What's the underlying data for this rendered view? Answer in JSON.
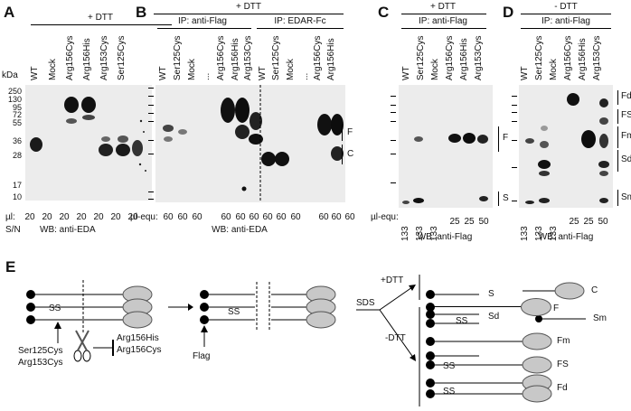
{
  "panels": {
    "A": {
      "letter": "A",
      "condition": "+ DTT",
      "kda": "kDa",
      "lanes": [
        "WT",
        "Mock",
        "Arg156Cys",
        "Arg156His",
        "Arg153Cys",
        "Ser125Cys"
      ],
      "markers": [
        "250",
        "130",
        "95",
        "72",
        "55",
        "36",
        "28",
        "17",
        "10"
      ],
      "side_labels": [
        "F",
        "C"
      ],
      "amount_prefix": "µl:",
      "amounts": [
        "20",
        "20",
        "20",
        "20",
        "20",
        "20",
        "20"
      ],
      "footer_left": "S/N",
      "footer_right": "WB: anti-EDA"
    },
    "B": {
      "letter": "B",
      "condition": "+ DTT",
      "ip_left": "IP: anti-Flag",
      "ip_right": "IP: EDAR-Fc",
      "lanes_left": [
        "WT",
        "Ser125Cys",
        "Mock",
        "...",
        "Arg156Cys",
        "Arg156His",
        "Arg153Cys"
      ],
      "lanes_right": [
        "WT",
        "Ser125Cys",
        "Mock",
        "...",
        "Arg156Cys",
        "Arg156His"
      ],
      "side_labels": [
        "F",
        "C"
      ],
      "amount_prefix": "µl-equ:",
      "amounts": [
        "60",
        "60",
        "60",
        "60",
        "60",
        "60",
        "60",
        "60",
        "60",
        "60",
        "60",
        "60"
      ],
      "footer": "WB: anti-EDA"
    },
    "C": {
      "letter": "C",
      "condition": "+ DTT",
      "ip": "IP: anti-Flag",
      "lanes": [
        "WT",
        "Ser125Cys",
        "Mock",
        "Arg156Cys",
        "Arg156His",
        "Arg153Cys"
      ],
      "side_labels": [
        "F",
        "S"
      ],
      "amount_prefix": "µl-equ:",
      "amounts": [
        "133",
        "133",
        "133",
        "25",
        "25",
        "50"
      ],
      "footer": "WB: anti-Flag"
    },
    "D": {
      "letter": "D",
      "condition": "- DTT",
      "ip": "IP: anti-Flag",
      "lanes": [
        "WT",
        "Ser125Cys",
        "Mock",
        "Arg156Cys",
        "Arg156His",
        "Arg153Cys"
      ],
      "side_labels": [
        "Fd",
        "FS",
        "Fm",
        "Sd",
        "Sm"
      ],
      "amounts": [
        "133",
        "133",
        "133",
        "25",
        "25",
        "50"
      ],
      "footer": "WB: anti-Flag"
    },
    "E": {
      "letter": "E",
      "mutations_left": "Ser125Cys\nArg153Cys",
      "mutations_right": "Arg156His\nArg156Cys",
      "ss": "SS",
      "flag": "Flag",
      "sds": "SDS",
      "plus_dtt": "+DTT",
      "minus_dtt": "-DTT",
      "species": [
        "S",
        "C",
        "F",
        "Sd",
        "Sm",
        "Fm",
        "FS",
        "Fd"
      ]
    }
  },
  "colors": {
    "blot_bg": "#ececec",
    "band": "#1a1a1a",
    "ellipse": "#c8c8c8"
  }
}
